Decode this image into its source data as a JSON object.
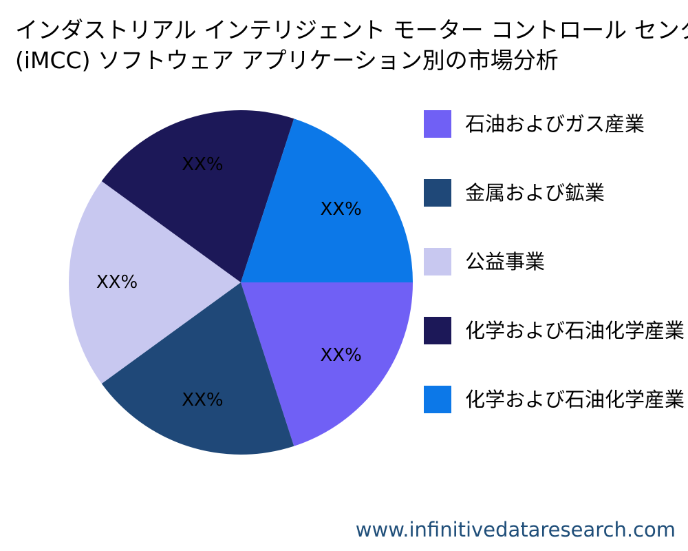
{
  "title_lines": [
    "インダストリアル インテリジェント モーター コントロール センター",
    "(iMCC) ソフトウェア アプリケーション別の市場分析"
  ],
  "chart_data": {
    "type": "pie",
    "title": "インダストリアル インテリジェント モーター コントロール センター (iMCC) ソフトウェア アプリケーション別の市場分析",
    "slices": [
      {
        "label": "石油およびガス産業",
        "value": 20,
        "display": "XX%",
        "color": "#7060f5"
      },
      {
        "label": "金属および鉱業",
        "value": 20,
        "display": "XX%",
        "color": "#1f4878"
      },
      {
        "label": "公益事業",
        "value": 20,
        "display": "XX%",
        "color": "#c8c8f0"
      },
      {
        "label": "化学および石油化学産業",
        "value": 20,
        "display": "XX%",
        "color": "#1c1858"
      },
      {
        "label": "化学および石油化学産業",
        "value": 20,
        "display": "XX%",
        "color": "#0c78e8"
      }
    ],
    "start_angle_deg": 0,
    "direction": "clockwise",
    "legend_position": "right"
  },
  "watermark": "www.infinitivedataresearch.com"
}
